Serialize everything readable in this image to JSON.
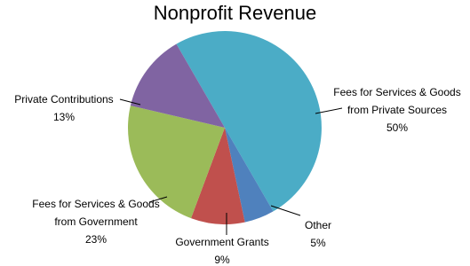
{
  "chart_data": {
    "type": "pie",
    "title": "Nonprofit Revenue",
    "categories": [
      "Fees for Services & Goods from Private Sources",
      "Other",
      "Government Grants",
      "Fees for Services & Goods from Government",
      "Private Contributions"
    ],
    "values": [
      50,
      5,
      9,
      23,
      13
    ],
    "value_labels": [
      "50%",
      "5%",
      "9%",
      "23%",
      "13%"
    ],
    "colors": [
      "#4bacc6",
      "#4f81bd",
      "#c0504d",
      "#9bbb59",
      "#8064a2"
    ]
  }
}
